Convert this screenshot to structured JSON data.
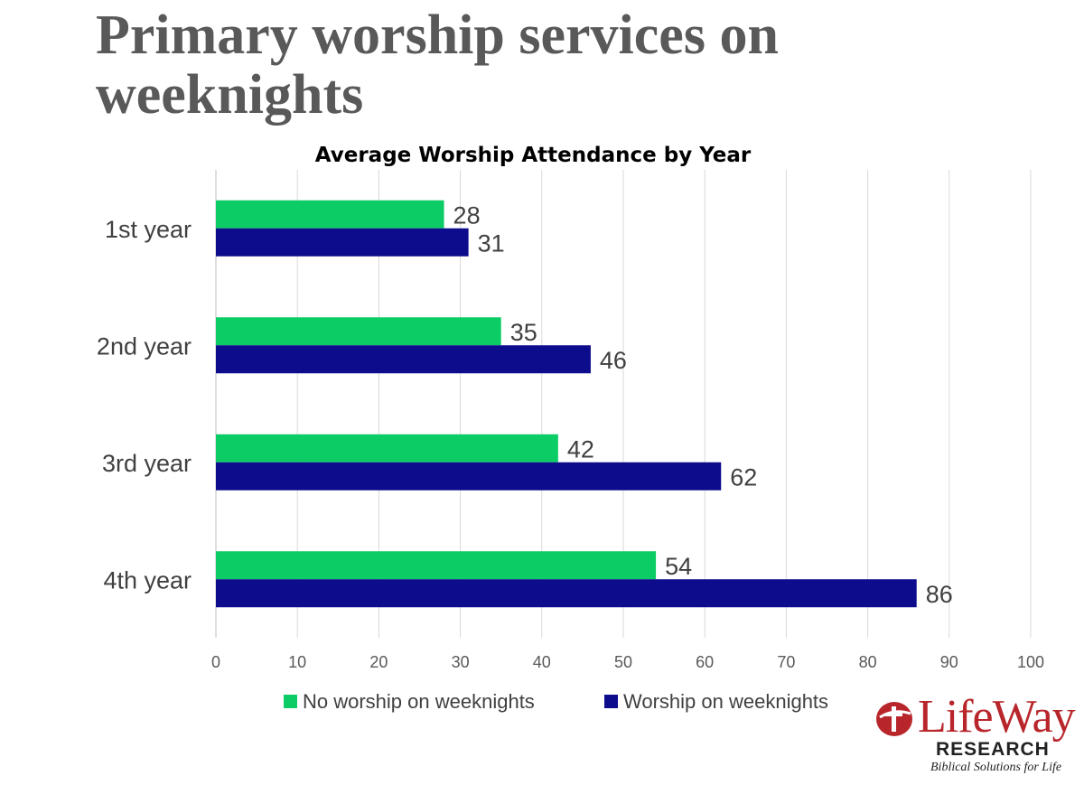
{
  "slide": {
    "title": "Primary worship services on weeknights"
  },
  "chart_data": {
    "type": "bar",
    "orientation": "horizontal",
    "title": "Average Worship Attendance by Year",
    "categories": [
      "1st year",
      "2nd year",
      "3rd year",
      "4th year"
    ],
    "series": [
      {
        "name": "No worship on weeknights",
        "color": "#0ccc66",
        "values": [
          28,
          35,
          42,
          54
        ]
      },
      {
        "name": "Worship on weeknights",
        "color": "#0c0c8c",
        "values": [
          31,
          46,
          62,
          86
        ]
      }
    ],
    "xlim": [
      0,
      100
    ],
    "ticks": [
      "0",
      "10",
      "20",
      "30",
      "40",
      "50",
      "60",
      "70",
      "80",
      "90",
      "100"
    ],
    "xlabel": "",
    "ylabel": "",
    "grid": true,
    "legend": "bottom"
  },
  "logo": {
    "word": "LifeWay",
    "research": "RESEARCH",
    "tagline": "Biblical Solutions for Life",
    "color": "#b8262c"
  }
}
